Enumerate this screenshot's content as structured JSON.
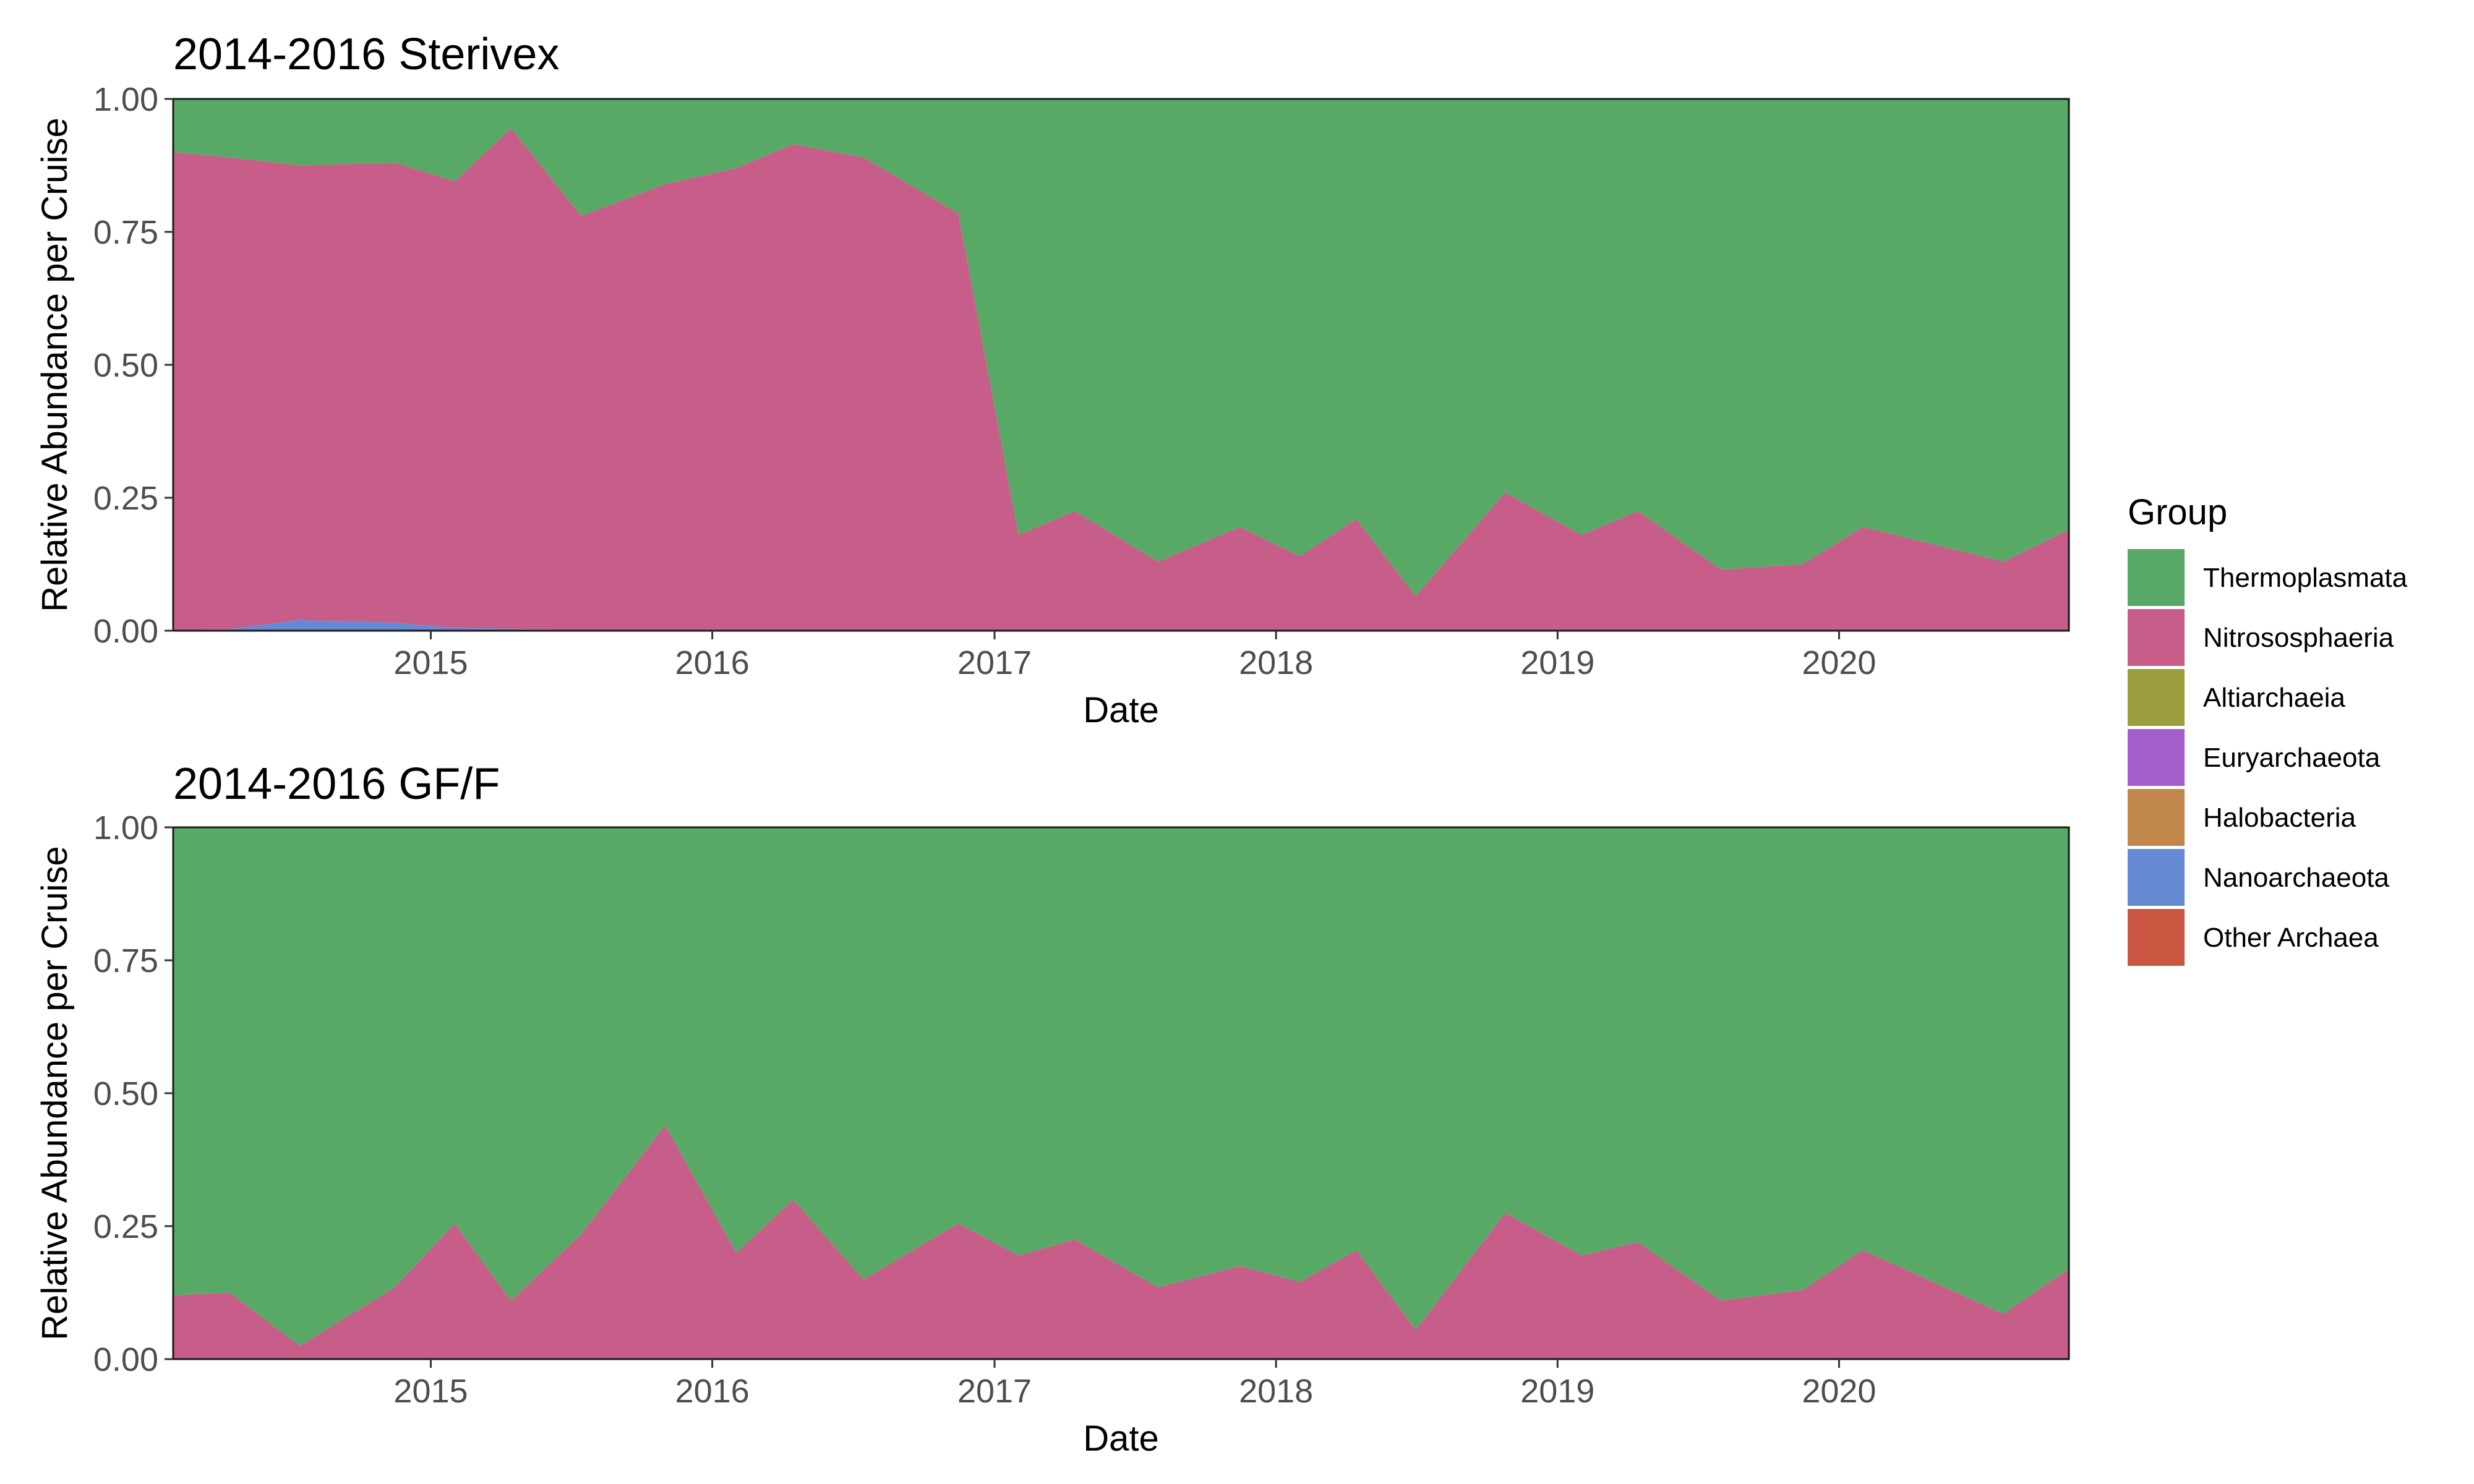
{
  "chart_data": [
    {
      "type": "area",
      "stacked": true,
      "title": "2014-2016 Sterivex",
      "xlabel": "Date",
      "ylabel": "Relative Abundance per Cruise",
      "xlim": [
        "2014-02-01",
        "2020-10-25"
      ],
      "ylim": [
        0,
        1
      ],
      "x_ticks": [
        "2015",
        "2016",
        "2017",
        "2018",
        "2019",
        "2020"
      ],
      "y_ticks": [
        "0.00",
        "0.25",
        "0.50",
        "0.75",
        "1.00"
      ],
      "x": [
        "2014-02-01",
        "2014-04-15",
        "2014-07-15",
        "2014-11-15",
        "2015-02-01",
        "2015-04-15",
        "2015-07-15",
        "2015-11-01",
        "2016-02-01",
        "2016-04-15",
        "2016-07-15",
        "2016-11-15",
        "2017-02-01",
        "2017-04-15",
        "2017-08-01",
        "2017-11-15",
        "2018-02-01",
        "2018-04-15",
        "2018-07-01",
        "2018-10-25",
        "2019-02-01",
        "2019-04-15",
        "2019-08-01",
        "2019-11-15",
        "2020-02-01",
        "2020-08-01",
        "2020-10-25"
      ],
      "series": [
        {
          "name": "Other Archaea",
          "color": "#cb5642",
          "values": [
            0,
            0,
            0,
            0,
            0,
            0,
            0,
            0,
            0,
            0,
            0,
            0,
            0,
            0,
            0,
            0,
            0,
            0,
            0,
            0,
            0,
            0,
            0,
            0,
            0,
            0,
            0
          ]
        },
        {
          "name": "Nanoarchaeota",
          "color": "#6689d3",
          "values": [
            0,
            0.003,
            0.02,
            0.015,
            0.005,
            0.004,
            0,
            0,
            0,
            0,
            0,
            0,
            0,
            0,
            0,
            0,
            0,
            0,
            0,
            0,
            0,
            0,
            0,
            0,
            0,
            0,
            0
          ]
        },
        {
          "name": "Halobacteria",
          "color": "#c1864a",
          "values": [
            0,
            0,
            0,
            0,
            0,
            0,
            0,
            0,
            0,
            0,
            0,
            0,
            0,
            0,
            0,
            0,
            0,
            0,
            0,
            0,
            0,
            0,
            0,
            0,
            0,
            0,
            0
          ]
        },
        {
          "name": "Euryarchaeota",
          "color": "#a35ecb",
          "values": [
            0,
            0,
            0,
            0,
            0,
            0,
            0,
            0,
            0,
            0,
            0,
            0,
            0,
            0,
            0,
            0,
            0,
            0,
            0,
            0,
            0,
            0,
            0,
            0,
            0,
            0,
            0
          ]
        },
        {
          "name": "Altiarchaeia",
          "color": "#9c9d3c",
          "values": [
            0,
            0,
            0,
            0,
            0,
            0,
            0,
            0,
            0,
            0,
            0,
            0,
            0,
            0,
            0,
            0,
            0,
            0,
            0,
            0,
            0,
            0,
            0,
            0,
            0,
            0,
            0
          ]
        },
        {
          "name": "Nitrososphaeria",
          "color": "#c75e8a",
          "values": [
            0.9,
            0.887,
            0.855,
            0.865,
            0.84,
            0.941,
            0.78,
            0.84,
            0.87,
            0.915,
            0.89,
            0.785,
            0.18,
            0.225,
            0.13,
            0.195,
            0.14,
            0.21,
            0.065,
            0.26,
            0.18,
            0.225,
            0.115,
            0.125,
            0.195,
            0.13,
            0.19
          ]
        },
        {
          "name": "Thermoplasmata",
          "color": "#58a965",
          "values": [
            0.1,
            0.11,
            0.125,
            0.12,
            0.155,
            0.055,
            0.22,
            0.16,
            0.13,
            0.085,
            0.11,
            0.215,
            0.82,
            0.775,
            0.87,
            0.805,
            0.86,
            0.79,
            0.935,
            0.74,
            0.82,
            0.775,
            0.885,
            0.875,
            0.805,
            0.87,
            0.81
          ]
        }
      ]
    },
    {
      "type": "area",
      "stacked": true,
      "title": "2014-2016 GF/F",
      "xlabel": "Date",
      "ylabel": "Relative Abundance per Cruise",
      "xlim": [
        "2014-02-01",
        "2020-10-25"
      ],
      "ylim": [
        0,
        1
      ],
      "x_ticks": [
        "2015",
        "2016",
        "2017",
        "2018",
        "2019",
        "2020"
      ],
      "y_ticks": [
        "0.00",
        "0.25",
        "0.50",
        "0.75",
        "1.00"
      ],
      "x": [
        "2014-02-01",
        "2014-04-15",
        "2014-07-15",
        "2014-11-15",
        "2015-02-01",
        "2015-04-15",
        "2015-07-15",
        "2015-11-01",
        "2016-02-01",
        "2016-04-15",
        "2016-07-15",
        "2016-11-15",
        "2017-02-01",
        "2017-04-15",
        "2017-08-01",
        "2017-11-15",
        "2018-02-01",
        "2018-04-15",
        "2018-07-01",
        "2018-10-25",
        "2019-02-01",
        "2019-04-15",
        "2019-08-01",
        "2019-11-15",
        "2020-02-01",
        "2020-08-01",
        "2020-10-25"
      ],
      "series": [
        {
          "name": "Other Archaea",
          "color": "#cb5642",
          "values": [
            0,
            0,
            0,
            0,
            0,
            0,
            0,
            0,
            0,
            0,
            0,
            0,
            0,
            0,
            0,
            0,
            0,
            0,
            0,
            0,
            0,
            0,
            0,
            0,
            0,
            0,
            0
          ]
        },
        {
          "name": "Nanoarchaeota",
          "color": "#6689d3",
          "values": [
            0,
            0,
            0,
            0,
            0,
            0,
            0,
            0,
            0,
            0,
            0,
            0,
            0,
            0,
            0,
            0,
            0,
            0,
            0,
            0,
            0,
            0,
            0,
            0,
            0,
            0,
            0
          ]
        },
        {
          "name": "Halobacteria",
          "color": "#c1864a",
          "values": [
            0,
            0,
            0,
            0,
            0,
            0,
            0,
            0,
            0,
            0,
            0,
            0,
            0,
            0,
            0,
            0,
            0,
            0,
            0,
            0,
            0,
            0,
            0,
            0,
            0,
            0,
            0
          ]
        },
        {
          "name": "Euryarchaeota",
          "color": "#a35ecb",
          "values": [
            0,
            0,
            0,
            0,
            0,
            0,
            0,
            0,
            0,
            0,
            0,
            0,
            0,
            0,
            0,
            0,
            0,
            0,
            0,
            0,
            0,
            0,
            0,
            0,
            0,
            0,
            0
          ]
        },
        {
          "name": "Altiarchaeia",
          "color": "#9c9d3c",
          "values": [
            0,
            0,
            0,
            0,
            0,
            0,
            0,
            0,
            0,
            0,
            0,
            0,
            0,
            0,
            0,
            0,
            0,
            0,
            0,
            0,
            0,
            0,
            0,
            0,
            0,
            0,
            0
          ]
        },
        {
          "name": "Nitrososphaeria",
          "color": "#c75e8a",
          "values": [
            0.12,
            0.125,
            0.025,
            0.135,
            0.255,
            0.11,
            0.235,
            0.44,
            0.2,
            0.3,
            0.15,
            0.255,
            0.195,
            0.225,
            0.135,
            0.175,
            0.145,
            0.205,
            0.055,
            0.275,
            0.195,
            0.22,
            0.11,
            0.13,
            0.205,
            0.085,
            0.17
          ]
        },
        {
          "name": "Thermoplasmata",
          "color": "#58a965",
          "values": [
            0.88,
            0.875,
            0.975,
            0.865,
            0.745,
            0.89,
            0.765,
            0.56,
            0.8,
            0.7,
            0.85,
            0.745,
            0.805,
            0.775,
            0.865,
            0.825,
            0.855,
            0.795,
            0.945,
            0.725,
            0.805,
            0.78,
            0.89,
            0.87,
            0.795,
            0.915,
            0.83
          ]
        }
      ]
    }
  ],
  "legend": {
    "title": "Group",
    "items": [
      {
        "label": "Thermoplasmata",
        "color": "#58a965"
      },
      {
        "label": "Nitrososphaeria",
        "color": "#c75e8a"
      },
      {
        "label": "Altiarchaeia",
        "color": "#9c9d3c"
      },
      {
        "label": "Euryarchaeota",
        "color": "#a35ecb"
      },
      {
        "label": "Halobacteria",
        "color": "#c1864a"
      },
      {
        "label": "Nanoarchaeota",
        "color": "#6689d3"
      },
      {
        "label": "Other Archaea",
        "color": "#cb5642"
      }
    ]
  }
}
